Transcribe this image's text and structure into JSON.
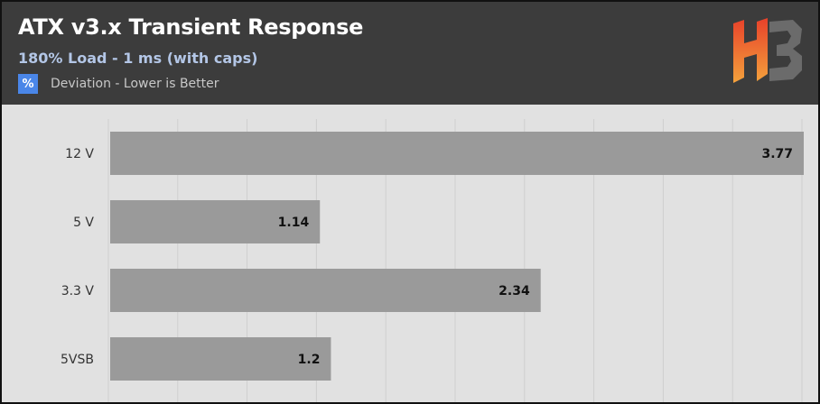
{
  "header": {
    "title": "ATX v3.x Transient Response",
    "subtitle": "180% Load - 1 ms (with caps)",
    "legend_symbol": "%",
    "legend_label": "Deviation - Lower is Better",
    "logo_text": "HB"
  },
  "colors": {
    "header_bg": "#3c3c3c",
    "plot_bg": "#e1e1e1",
    "bar": "#9a9a9a",
    "legend_swatch": "#4a86e8",
    "subtitle": "#b3c6e6",
    "logo_red": "#e8412a",
    "logo_orange": "#f4a23c",
    "logo_gray": "#6b6b6b"
  },
  "chart_data": {
    "type": "bar",
    "orientation": "horizontal",
    "categories": [
      "12 V",
      "5 V",
      "3.3 V",
      "5VSB"
    ],
    "values": [
      3.77,
      1.14,
      2.34,
      1.2
    ],
    "value_labels": [
      "3.77",
      "1.14",
      "2.34",
      "1.2"
    ],
    "xlim": [
      0,
      3.77
    ],
    "grid": true,
    "gridlines": 10
  }
}
